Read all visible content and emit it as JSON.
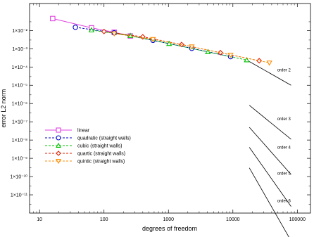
{
  "chart_data": {
    "type": "line",
    "xlabel": "degrees of freedom",
    "ylabel": "error L2 norm",
    "x_scale": "log",
    "y_scale": "log",
    "xlim": [
      7,
      160000
    ],
    "ylim": [
      1e-12,
      0.3
    ],
    "grid": false,
    "legend_position": "lower-left",
    "x_ticks": [
      {
        "value": 10,
        "label": "10"
      },
      {
        "value": 100,
        "label": "100"
      },
      {
        "value": 1000,
        "label": "1000"
      },
      {
        "value": 10000,
        "label": "10000"
      },
      {
        "value": 100000,
        "label": "100000"
      }
    ],
    "y_ticks": [
      {
        "value": 0.01,
        "label": "1×10⁻²"
      },
      {
        "value": 0.001,
        "label": "1×10⁻³"
      },
      {
        "value": 0.0001,
        "label": "1×10⁻⁴"
      },
      {
        "value": 1e-05,
        "label": "1×10⁻⁵"
      },
      {
        "value": 1e-06,
        "label": "1×10⁻⁶"
      },
      {
        "value": 1e-07,
        "label": "1×10⁻⁷"
      },
      {
        "value": 1e-08,
        "label": "1×10⁻⁸"
      },
      {
        "value": 1e-09,
        "label": "1×10⁻⁹"
      },
      {
        "value": 1e-10,
        "label": "1×10⁻¹⁰"
      },
      {
        "value": 1e-11,
        "label": "1×10⁻¹¹"
      }
    ],
    "series": [
      {
        "name": "linear",
        "color": "#e040e0",
        "marker": "square",
        "dash": "solid",
        "x": [
          16,
          64,
          144,
          256
        ],
        "y": [
          0.045,
          0.014,
          0.008,
          0.005
        ]
      },
      {
        "name": "quadratic (straight walls)",
        "color": "#0000cc",
        "marker": "circle",
        "dash": "dashed",
        "x": [
          36,
          144,
          576,
          2304,
          9216
        ],
        "y": [
          0.015,
          0.0075,
          0.0029,
          0.00105,
          0.00037
        ]
      },
      {
        "name": "cubic (straight walls)",
        "color": "#00c000",
        "marker": "triangle-up",
        "dash": "dashed",
        "x": [
          64,
          256,
          1024,
          4096,
          16384
        ],
        "y": [
          0.0105,
          0.0052,
          0.0019,
          0.00067,
          0.00024
        ]
      },
      {
        "name": "quartic (straight walls)",
        "color": "#e02000",
        "marker": "diamond",
        "dash": "dashed",
        "x": [
          100,
          400,
          1600,
          6400,
          25600
        ],
        "y": [
          0.0088,
          0.0045,
          0.0017,
          0.00061,
          0.00022
        ]
      },
      {
        "name": "quintic (straight walls)",
        "color": "#ff8c00",
        "marker": "triangle-down",
        "dash": "dashed",
        "x": [
          144,
          576,
          2304,
          9216,
          36864
        ],
        "y": [
          0.0068,
          0.0033,
          0.0013,
          0.00046,
          0.00017
        ]
      }
    ],
    "reference_lines": [
      {
        "label": "order 2",
        "x": [
          18000,
          80000
        ],
        "y": [
          0.0002,
          1e-05
        ]
      },
      {
        "label": "order 3",
        "x": [
          18000,
          80000
        ],
        "y": [
          8e-07,
          1.1e-08
        ]
      },
      {
        "label": "order 4",
        "x": [
          18000,
          80000
        ],
        "y": [
          5e-08,
          1.3e-10
        ]
      },
      {
        "label": "order 5",
        "x": [
          18000,
          80000
        ],
        "y": [
          4e-09,
          2.3e-12
        ]
      },
      {
        "label": "order 6",
        "x": [
          18000,
          80000
        ],
        "y": [
          3e-10,
          3e-14
        ]
      }
    ]
  }
}
